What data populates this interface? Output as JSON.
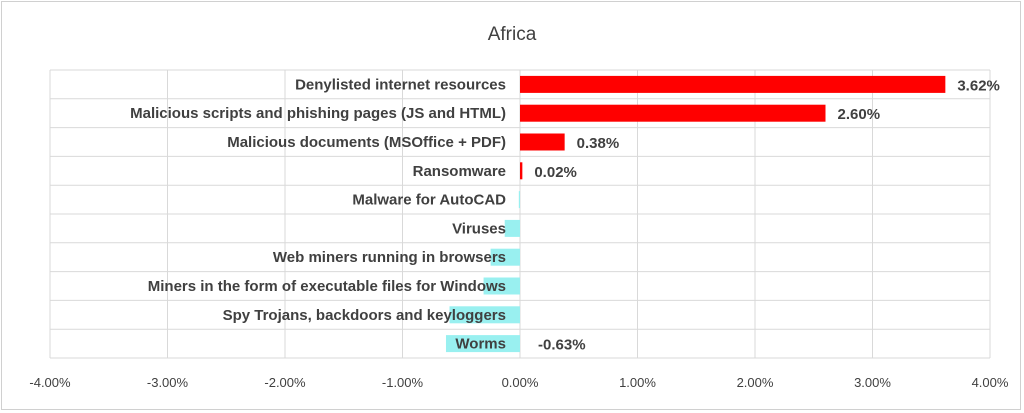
{
  "chart_data": {
    "type": "bar",
    "orientation": "horizontal",
    "title": "Africa",
    "categories": [
      "Denylisted internet resources",
      "Malicious scripts and phishing pages (JS and HTML)",
      "Malicious documents (MSOffice + PDF)",
      "Ransomware",
      "Malware for AutoCAD",
      "Viruses",
      "Web miners running in browsers",
      "Miners in the form of executable files for Windows",
      "Spy Trojans, backdoors and keyloggers",
      "Worms"
    ],
    "values": [
      3.62,
      2.6,
      0.38,
      0.02,
      -0.01,
      -0.13,
      -0.25,
      -0.31,
      -0.6,
      -0.63
    ],
    "data_labels": [
      "3.62%",
      "2.60%",
      "0.38%",
      "0.02%",
      "",
      "",
      "",
      "",
      "",
      "-0.63%"
    ],
    "xlim": [
      -4,
      4
    ],
    "xticks": [
      "-4.00%",
      "-3.00%",
      "-2.00%",
      "-1.00%",
      "0.00%",
      "1.00%",
      "2.00%",
      "3.00%",
      "4.00%"
    ],
    "xtick_values": [
      -4,
      -3,
      -2,
      -1,
      0,
      1,
      2,
      3,
      4
    ],
    "grid": true,
    "colors": {
      "positive": "#ff0000",
      "negative": "#99f0f0",
      "grid": "#d9d9d9",
      "text": "#404040"
    }
  }
}
